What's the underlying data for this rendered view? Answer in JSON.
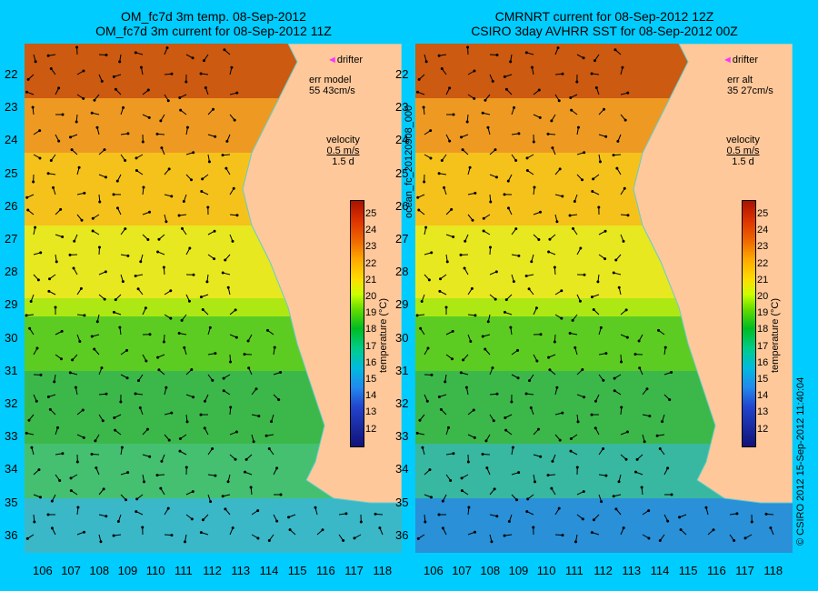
{
  "left": {
    "title_line1": "OM_fc7d 3m temp. 08-Sep-2012",
    "title_line2": "OM_fc7d 3m current for 08-Sep-2012 11Z",
    "drifter_label": "drifter",
    "err_line1": "err model",
    "err_line2": "55 43cm/s",
    "vel_line1": "velocity",
    "vel_line2": "0.5 m/s",
    "vel_line3": "1.5 d",
    "colorbar_title": "temperature (°C)"
  },
  "right": {
    "title_line1": "CMRNRT current for 08-Sep-2012 12Z",
    "title_line2": "CSIRO 3day AVHRR SST for 08-Sep-2012 00Z",
    "drifter_label": "drifter",
    "err_line1": "err alt",
    "err_line2": "35 27cm/s",
    "vel_line1": "velocity",
    "vel_line2": "0.5 m/s",
    "vel_line3": "1.5 d",
    "colorbar_title": "temperature (°C)"
  },
  "middle_vertical_text": "ocean_fc_20120908_000",
  "right_vertical_text": "© CSIRO 2012   15-Sep-2012 11:40:04",
  "lat_labels": [
    "22",
    "23",
    "24",
    "25",
    "26",
    "27",
    "28",
    "29",
    "30",
    "31",
    "32",
    "33",
    "34",
    "35",
    "36"
  ],
  "lon_labels": [
    "106",
    "107",
    "108",
    "109",
    "110",
    "111",
    "112",
    "113",
    "114",
    "115",
    "116",
    "117",
    "118"
  ],
  "colorbar_ticks": [
    "25",
    "24",
    "23",
    "22",
    "21",
    "20",
    "19",
    "18",
    "17",
    "16",
    "15",
    "14",
    "13",
    "12"
  ],
  "colors": {
    "background": "#00ccff",
    "land": "#ffc89a",
    "drifter": "#ff33ff",
    "coastline": "#66cccc"
  }
}
